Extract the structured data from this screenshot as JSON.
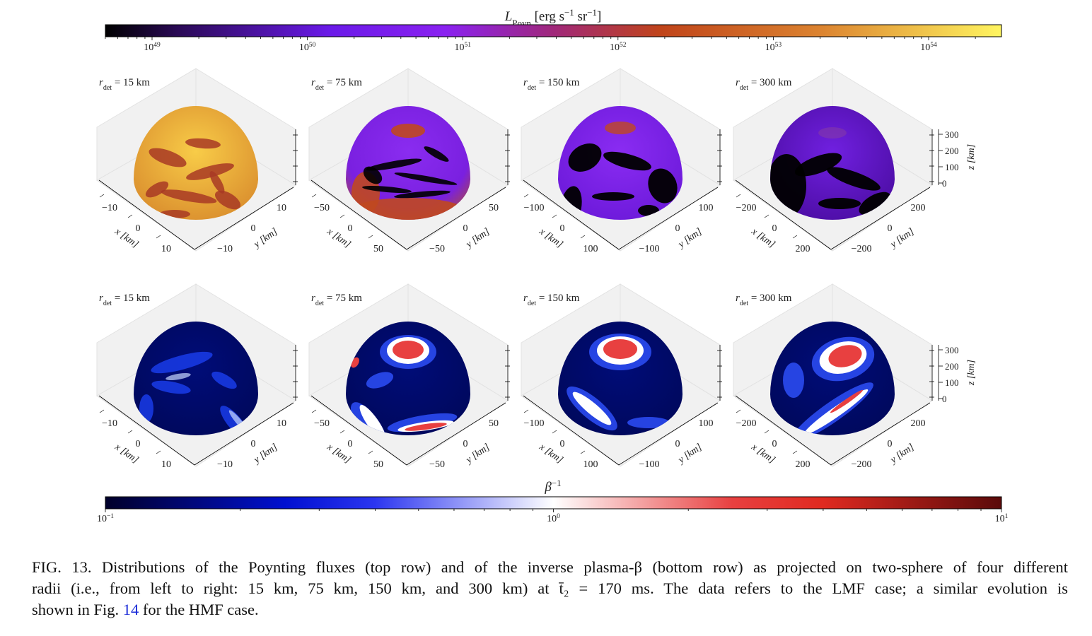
{
  "top_colorbar": {
    "label": [
      {
        "text": "L",
        "pos": "italic"
      },
      {
        "text": "Poyn",
        "pos": "sub"
      },
      {
        "text": " [erg s",
        "pos": "base"
      },
      {
        "text": "−1",
        "pos": "sup"
      },
      {
        "text": " sr",
        "pos": "base"
      },
      {
        "text": "−1",
        "pos": "sup"
      },
      {
        "text": "]",
        "pos": "base"
      }
    ],
    "ticks": [
      {
        "base": "10",
        "exponent": "49"
      },
      {
        "base": "10",
        "exponent": "50"
      },
      {
        "base": "10",
        "exponent": "51"
      },
      {
        "base": "10",
        "exponent": "52"
      },
      {
        "base": "10",
        "exponent": "53"
      },
      {
        "base": "10",
        "exponent": "54"
      }
    ]
  },
  "rows": [
    {
      "z_ticks": [
        "300",
        "200",
        "100",
        "0"
      ],
      "z_label": "z [km]",
      "panels": [
        {
          "radius": {
            "symbol": "r",
            "subscript": "det",
            "text": " = 15 km"
          },
          "x_ticks": [
            "−10",
            "0",
            "10"
          ],
          "y_ticks": [
            "−10",
            "0",
            "10"
          ],
          "x_label": "x [km]",
          "y_label": "y [km]"
        },
        {
          "radius": {
            "symbol": "r",
            "subscript": "det",
            "text": " = 75 km"
          },
          "x_ticks": [
            "−50",
            "0",
            "50"
          ],
          "y_ticks": [
            "−50",
            "0",
            "50"
          ],
          "x_label": "x [km]",
          "y_label": "y [km]"
        },
        {
          "radius": {
            "symbol": "r",
            "subscript": "det",
            "text": " = 150 km"
          },
          "x_ticks": [
            "−100",
            "0",
            "100"
          ],
          "y_ticks": [
            "−100",
            "0",
            "100"
          ],
          "x_label": "x [km]",
          "y_label": "y [km]"
        },
        {
          "radius": {
            "symbol": "r",
            "subscript": "det",
            "text": " = 300 km"
          },
          "x_ticks": [
            "−200",
            "0",
            "200"
          ],
          "y_ticks": [
            "−200",
            "0",
            "200"
          ],
          "x_label": "x [km]",
          "y_label": "y [km]"
        }
      ]
    },
    {
      "z_ticks": [
        "300",
        "200",
        "100",
        "0"
      ],
      "z_label": "z [km]",
      "panels": [
        {
          "radius": {
            "symbol": "r",
            "subscript": "det",
            "text": " = 15 km"
          },
          "x_ticks": [
            "−10",
            "0",
            "10"
          ],
          "y_ticks": [
            "−10",
            "0",
            "10"
          ],
          "x_label": "x [km]",
          "y_label": "y [km]"
        },
        {
          "radius": {
            "symbol": "r",
            "subscript": "det",
            "text": " = 75 km"
          },
          "x_ticks": [
            "−50",
            "0",
            "50"
          ],
          "y_ticks": [
            "−50",
            "0",
            "50"
          ],
          "x_label": "x [km]",
          "y_label": "y [km]"
        },
        {
          "radius": {
            "symbol": "r",
            "subscript": "det",
            "text": " = 150 km"
          },
          "x_ticks": [
            "−100",
            "0",
            "100"
          ],
          "y_ticks": [
            "−100",
            "0",
            "100"
          ],
          "x_label": "x [km]",
          "y_label": "y [km]"
        },
        {
          "radius": {
            "symbol": "r",
            "subscript": "det",
            "text": " = 300 km"
          },
          "x_ticks": [
            "−200",
            "0",
            "200"
          ],
          "y_ticks": [
            "−200",
            "0",
            "200"
          ],
          "x_label": "x [km]",
          "y_label": "y [km]"
        }
      ]
    }
  ],
  "bottom_colorbar": {
    "label": [
      {
        "text": "β",
        "pos": "italic"
      },
      {
        "text": "−1",
        "pos": "sup"
      }
    ],
    "ticks": [
      {
        "base": "10",
        "exponent": "−1"
      },
      {
        "base": "10",
        "exponent": "0"
      },
      {
        "base": "10",
        "exponent": "1"
      }
    ]
  },
  "caption": {
    "line1": "FIG. 13. Distributions of the Poynting fluxes (top row) and of the inverse plasma-β (bottom row) as projected on two-sphere of four different",
    "line2": "radii (i.e., from left to right: 15 km, 75 km, 150 km, and 300 km) at t̄₂ = 170 ms. The data refers to the LMF case; a similar evolution is",
    "line3_start": "shown in Fig. ",
    "line3_ref": "14",
    "line3_end": " for the HMF case."
  }
}
